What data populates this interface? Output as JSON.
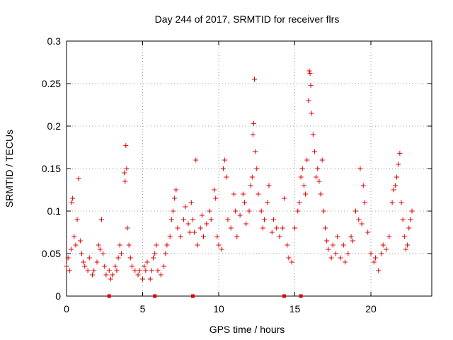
{
  "chart_data": {
    "type": "scatter",
    "title": "Day 244 of 2017, SRMTID for receiver flrs",
    "xlabel": "GPS time / hours",
    "ylabel": "SRMTID / TECUs",
    "xlim": [
      0,
      24
    ],
    "ylim": [
      0,
      0.3
    ],
    "xticks": [
      "0",
      "5",
      "10",
      "15",
      "20"
    ],
    "yticks": [
      "0",
      "0.05",
      "0.1",
      "0.15",
      "0.2",
      "0.25",
      "0.3"
    ],
    "grid": true,
    "marker": "+",
    "color": "#e00000",
    "series": [
      {
        "name": "SRMTID",
        "points": [
          [
            0.0,
            0.035
          ],
          [
            0.1,
            0.045
          ],
          [
            0.2,
            0.03
          ],
          [
            0.3,
            0.055
          ],
          [
            0.35,
            0.11
          ],
          [
            0.4,
            0.115
          ],
          [
            0.5,
            0.07
          ],
          [
            0.6,
            0.06
          ],
          [
            0.7,
            0.09
          ],
          [
            0.8,
            0.138
          ],
          [
            0.9,
            0.065
          ],
          [
            1.0,
            0.05
          ],
          [
            1.1,
            0.04
          ],
          [
            1.2,
            0.035
          ],
          [
            1.4,
            0.03
          ],
          [
            1.5,
            0.045
          ],
          [
            1.7,
            0.025
          ],
          [
            1.8,
            0.03
          ],
          [
            2.0,
            0.04
          ],
          [
            2.1,
            0.06
          ],
          [
            2.2,
            0.055
          ],
          [
            2.3,
            0.09
          ],
          [
            2.4,
            0.05
          ],
          [
            2.5,
            0.035
          ],
          [
            2.6,
            0.025
          ],
          [
            2.8,
            0.03
          ],
          [
            2.9,
            0.02
          ],
          [
            3.0,
            0.025
          ],
          [
            3.2,
            0.035
          ],
          [
            3.3,
            0.03
          ],
          [
            3.4,
            0.045
          ],
          [
            3.5,
            0.06
          ],
          [
            3.6,
            0.05
          ],
          [
            3.8,
            0.145
          ],
          [
            3.85,
            0.135
          ],
          [
            3.9,
            0.177
          ],
          [
            3.95,
            0.15
          ],
          [
            4.0,
            0.08
          ],
          [
            4.1,
            0.06
          ],
          [
            4.2,
            0.045
          ],
          [
            4.3,
            0.035
          ],
          [
            4.5,
            0.03
          ],
          [
            4.7,
            0.025
          ],
          [
            4.8,
            0.03
          ],
          [
            5.0,
            0.02
          ],
          [
            5.1,
            0.035
          ],
          [
            5.2,
            0.03
          ],
          [
            5.3,
            0.04
          ],
          [
            5.5,
            0.02
          ],
          [
            5.6,
            0.03
          ],
          [
            5.7,
            0.045
          ],
          [
            5.8,
            0.05
          ],
          [
            5.9,
            0.06
          ],
          [
            6.0,
            0.03
          ],
          [
            6.2,
            0.025
          ],
          [
            6.4,
            0.035
          ],
          [
            6.5,
            0.05
          ],
          [
            6.6,
            0.06
          ],
          [
            6.8,
            0.07
          ],
          [
            6.9,
            0.09
          ],
          [
            7.0,
            0.1
          ],
          [
            7.1,
            0.115
          ],
          [
            7.2,
            0.125
          ],
          [
            7.3,
            0.08
          ],
          [
            7.5,
            0.07
          ],
          [
            7.7,
            0.09
          ],
          [
            7.8,
            0.105
          ],
          [
            8.0,
            0.085
          ],
          [
            8.1,
            0.075
          ],
          [
            8.2,
            0.11
          ],
          [
            8.3,
            0.09
          ],
          [
            8.4,
            0.075
          ],
          [
            8.5,
            0.16
          ],
          [
            8.6,
            0.06
          ],
          [
            8.8,
            0.08
          ],
          [
            8.9,
            0.095
          ],
          [
            9.0,
            0.07
          ],
          [
            9.2,
            0.085
          ],
          [
            9.4,
            0.1
          ],
          [
            9.5,
            0.09
          ],
          [
            9.7,
            0.125
          ],
          [
            9.8,
            0.115
          ],
          [
            9.9,
            0.07
          ],
          [
            10.0,
            0.06
          ],
          [
            10.2,
            0.055
          ],
          [
            10.3,
            0.15
          ],
          [
            10.4,
            0.16
          ],
          [
            10.5,
            0.14
          ],
          [
            10.6,
            0.09
          ],
          [
            10.8,
            0.08
          ],
          [
            11.0,
            0.12
          ],
          [
            11.1,
            0.1
          ],
          [
            11.2,
            0.07
          ],
          [
            11.4,
            0.095
          ],
          [
            11.6,
            0.12
          ],
          [
            11.7,
            0.11
          ],
          [
            11.8,
            0.085
          ],
          [
            12.0,
            0.1
          ],
          [
            12.1,
            0.13
          ],
          [
            12.2,
            0.14
          ],
          [
            12.25,
            0.19
          ],
          [
            12.3,
            0.203
          ],
          [
            12.35,
            0.255
          ],
          [
            12.4,
            0.17
          ],
          [
            12.5,
            0.15
          ],
          [
            12.6,
            0.12
          ],
          [
            12.8,
            0.1
          ],
          [
            12.9,
            0.08
          ],
          [
            13.0,
            0.09
          ],
          [
            13.2,
            0.11
          ],
          [
            13.3,
            0.13
          ],
          [
            13.5,
            0.075
          ],
          [
            13.6,
            0.09
          ],
          [
            13.8,
            0.08
          ],
          [
            14.0,
            0.07
          ],
          [
            14.2,
            0.08
          ],
          [
            14.3,
            0.115
          ],
          [
            14.5,
            0.06
          ],
          [
            14.6,
            0.045
          ],
          [
            14.8,
            0.04
          ],
          [
            15.0,
            0.08
          ],
          [
            15.2,
            0.1
          ],
          [
            15.3,
            0.11
          ],
          [
            15.4,
            0.14
          ],
          [
            15.5,
            0.15
          ],
          [
            15.6,
            0.13
          ],
          [
            15.7,
            0.12
          ],
          [
            15.8,
            0.16
          ],
          [
            15.9,
            0.23
          ],
          [
            15.95,
            0.265
          ],
          [
            16.0,
            0.262
          ],
          [
            16.05,
            0.248
          ],
          [
            16.1,
            0.215
          ],
          [
            16.2,
            0.19
          ],
          [
            16.3,
            0.17
          ],
          [
            16.4,
            0.14
          ],
          [
            16.5,
            0.15
          ],
          [
            16.6,
            0.135
          ],
          [
            16.7,
            0.12
          ],
          [
            16.8,
            0.16
          ],
          [
            16.9,
            0.1
          ],
          [
            17.0,
            0.08
          ],
          [
            17.1,
            0.065
          ],
          [
            17.2,
            0.055
          ],
          [
            17.4,
            0.045
          ],
          [
            17.5,
            0.06
          ],
          [
            17.7,
            0.05
          ],
          [
            17.8,
            0.07
          ],
          [
            18.0,
            0.045
          ],
          [
            18.2,
            0.06
          ],
          [
            18.3,
            0.04
          ],
          [
            18.5,
            0.05
          ],
          [
            18.7,
            0.07
          ],
          [
            18.8,
            0.065
          ],
          [
            19.0,
            0.1
          ],
          [
            19.2,
            0.09
          ],
          [
            19.3,
            0.15
          ],
          [
            19.4,
            0.085
          ],
          [
            19.5,
            0.13
          ],
          [
            19.6,
            0.11
          ],
          [
            19.8,
            0.075
          ],
          [
            20.0,
            0.05
          ],
          [
            20.2,
            0.04
          ],
          [
            20.3,
            0.045
          ],
          [
            20.5,
            0.03
          ],
          [
            20.7,
            0.05
          ],
          [
            20.8,
            0.06
          ],
          [
            21.0,
            0.055
          ],
          [
            21.2,
            0.07
          ],
          [
            21.4,
            0.11
          ],
          [
            21.5,
            0.125
          ],
          [
            21.6,
            0.13
          ],
          [
            21.7,
            0.14
          ],
          [
            21.8,
            0.155
          ],
          [
            21.9,
            0.168
          ],
          [
            22.0,
            0.11
          ],
          [
            22.1,
            0.09
          ],
          [
            22.2,
            0.07
          ],
          [
            22.3,
            0.055
          ],
          [
            22.4,
            0.06
          ],
          [
            22.5,
            0.08
          ],
          [
            22.6,
            0.09
          ],
          [
            22.7,
            0.1
          ]
        ]
      }
    ],
    "axis_markers": [
      2.8,
      5.8,
      8.3,
      14.3,
      15.4
    ]
  }
}
